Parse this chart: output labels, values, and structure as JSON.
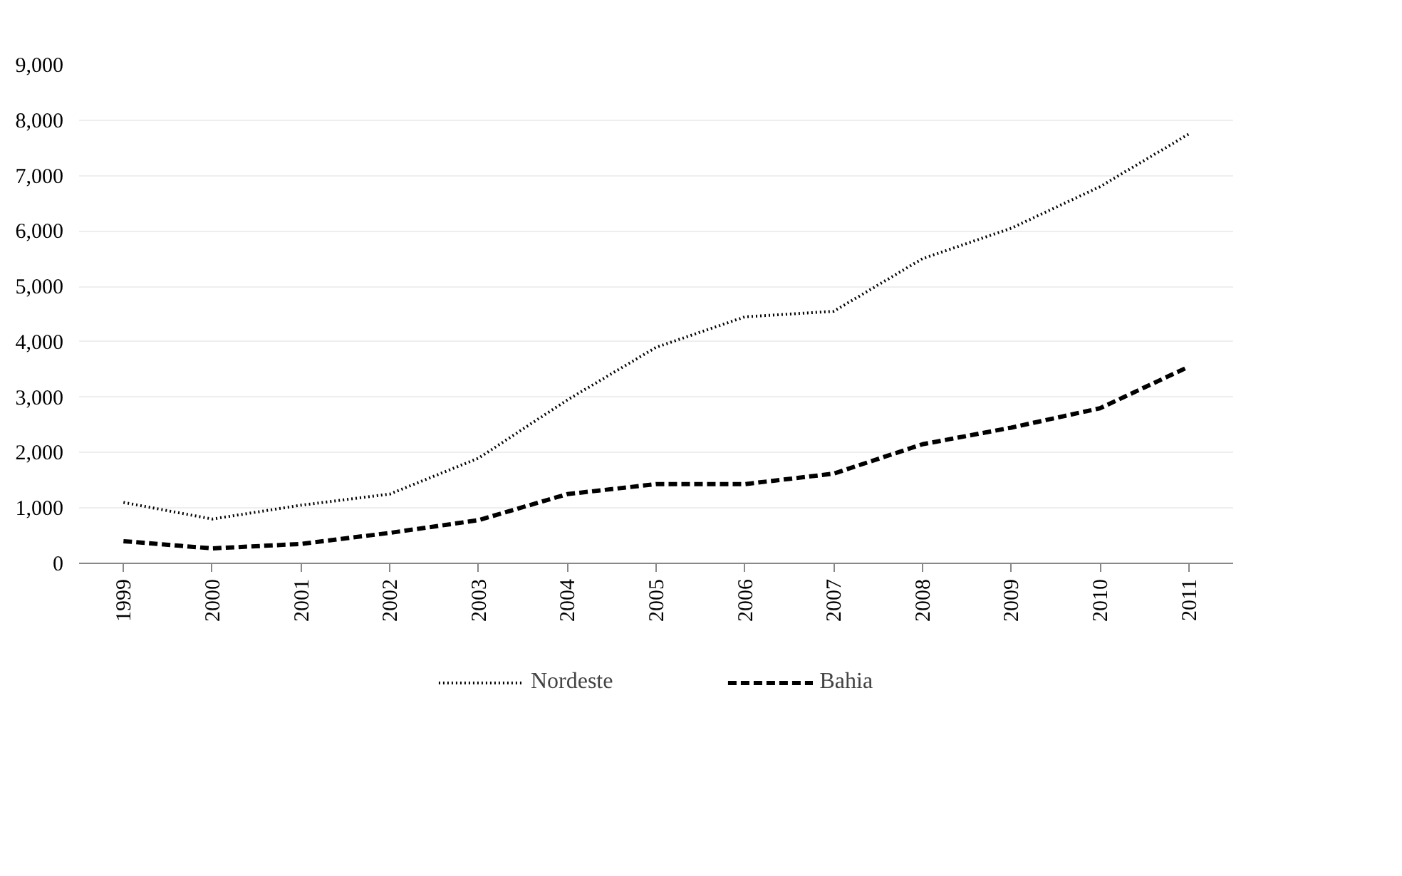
{
  "chart_data": {
    "type": "line",
    "categories": [
      "1999",
      "2000",
      "2001",
      "2002",
      "2003",
      "2004",
      "2005",
      "2006",
      "2007",
      "2008",
      "2009",
      "2010",
      "2011"
    ],
    "series": [
      {
        "name": "Nordeste",
        "color": "#000000",
        "line_style": "dotted",
        "values": [
          1100,
          800,
          1050,
          1250,
          1900,
          2950,
          3900,
          4450,
          4550,
          5500,
          6050,
          6800,
          7750
        ]
      },
      {
        "name": "Bahia",
        "color": "#000000",
        "line_style": "dashed",
        "values": [
          400,
          270,
          350,
          550,
          780,
          1250,
          1430,
          1430,
          1620,
          2150,
          2450,
          2800,
          3550
        ]
      }
    ],
    "ylim": [
      0,
      9000
    ],
    "yticks": [
      0,
      {
        "value": 1000,
        "label": "1,000"
      },
      {
        "value": 2000,
        "label": "2,000"
      },
      {
        "value": 3000,
        "label": "3,000"
      },
      {
        "value": 4000,
        "label": "4,000"
      },
      {
        "value": 5000,
        "label": "5,000"
      },
      {
        "value": 6000,
        "label": "6,000"
      },
      {
        "value": 7000,
        "label": "7,000"
      },
      {
        "value": 8000,
        "label": "8,000"
      },
      {
        "value": 9000,
        "label": "9,000"
      }
    ],
    "grid": "y",
    "legend": "bottom"
  }
}
